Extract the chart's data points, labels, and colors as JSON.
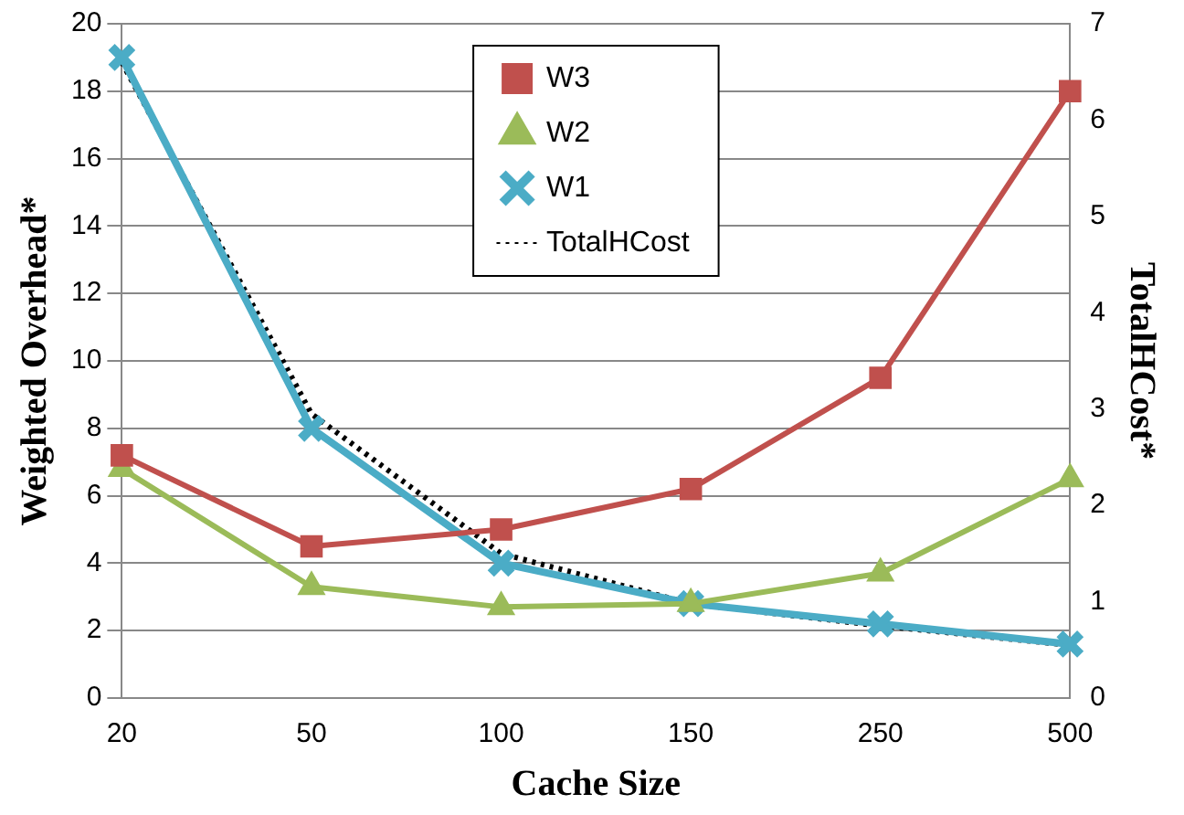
{
  "chart_data": {
    "type": "line",
    "xlabel": "Cache Size",
    "ylabel": "Weighted Overhead*",
    "y2label": "TotalHCost*",
    "categories": [
      "20",
      "50",
      "100",
      "150",
      "250",
      "500"
    ],
    "series": [
      {
        "name": "W3",
        "color": "#c0504d",
        "marker": "square",
        "values": [
          7.2,
          4.5,
          5.0,
          6.2,
          9.5,
          18.0
        ]
      },
      {
        "name": "W2",
        "color": "#9bbb59",
        "marker": "triangle",
        "values": [
          6.8,
          3.3,
          2.7,
          2.8,
          3.7,
          6.5
        ]
      },
      {
        "name": "W1",
        "color": "#4bacc6",
        "marker": "cross",
        "values": [
          19.0,
          8.0,
          4.0,
          2.8,
          2.2,
          1.6
        ]
      },
      {
        "name": "TotalHCost",
        "color": "#000000",
        "marker": "none",
        "line_style": "dotted",
        "axis": "y2",
        "values": [
          6.6,
          2.95,
          1.5,
          0.98,
          0.75,
          0.55
        ]
      }
    ],
    "ylim": [
      0,
      20
    ],
    "yticks": [
      0,
      2,
      4,
      6,
      8,
      10,
      12,
      14,
      16,
      18,
      20
    ],
    "y2lim": [
      0,
      7
    ],
    "y2ticks": [
      0,
      1,
      2,
      3,
      4,
      5,
      6,
      7
    ],
    "grid": "y",
    "legend": "top"
  }
}
